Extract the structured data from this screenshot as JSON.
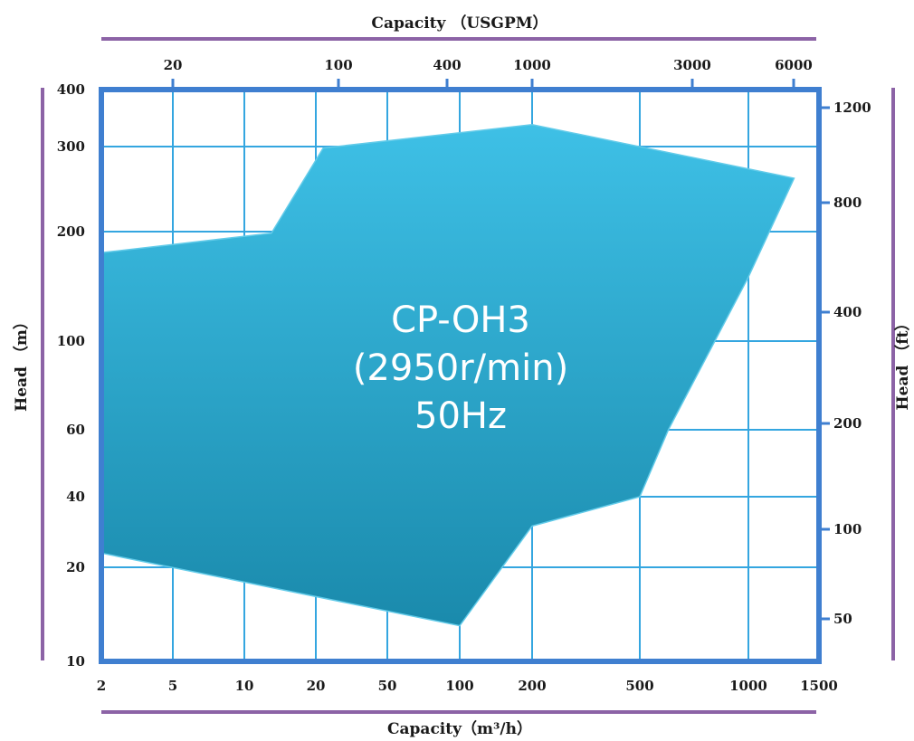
{
  "chart_data": {
    "type": "area",
    "title": "",
    "overlay_text": [
      "CP-OH3",
      "(2950r/min)",
      "50Hz"
    ],
    "xlabel_bottom": "Capacity（m³/h）",
    "xlabel_top": "Capacity （USGPM）",
    "ylabel_left": "Head （m）",
    "ylabel_right": "Head （ft）",
    "x_scale": "log",
    "xlim": [
      2,
      1500
    ],
    "ylim": [
      10,
      400
    ],
    "x_ticks_bottom": [
      2,
      5,
      10,
      20,
      50,
      100,
      200,
      500,
      1000,
      1500
    ],
    "x_ticks_top": [
      20,
      100,
      400,
      1000,
      3000,
      6000
    ],
    "y_ticks_left": [
      10,
      20,
      40,
      60,
      100,
      200,
      300,
      400
    ],
    "y_ticks_right": [
      50,
      100,
      200,
      400,
      800,
      1200
    ],
    "series": [
      {
        "points": [
          [
            2,
            175
          ],
          [
            13,
            198
          ],
          [
            22,
            298
          ],
          [
            200,
            335
          ],
          [
            1300,
            258
          ],
          [
            1000,
            150
          ],
          [
            600,
            60
          ],
          [
            500,
            40
          ],
          [
            200,
            30
          ],
          [
            100,
            13
          ],
          [
            2,
            23
          ]
        ]
      }
    ],
    "grid": true,
    "colors": {
      "fill_top": "#3ec0e6",
      "fill_bottom": "#1a8aac",
      "axis": "#3f7fd0",
      "grid": "#34a6e0",
      "frame_bar": "#8c63a6"
    }
  }
}
